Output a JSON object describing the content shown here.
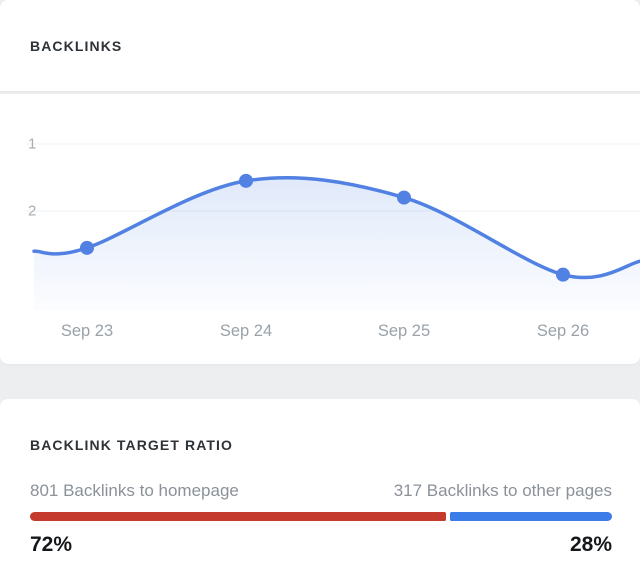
{
  "backlinks": {
    "title": "BACKLINKS"
  },
  "ratio": {
    "title": "BACKLINK TARGET RATIO",
    "left_label": "801 Backlinks to homepage",
    "right_label": "317 Backlinks to other pages",
    "left_percent": "72%",
    "right_percent": "28%",
    "left_value": 72,
    "right_value": 28,
    "left_color": "#c43b2e",
    "right_color": "#3c7ce9"
  },
  "chart_data": [
    {
      "type": "line",
      "title": "Backlinks",
      "categories": [
        "Sep 23",
        "Sep 24",
        "Sep 25",
        "Sep 26"
      ],
      "values": [
        2.55,
        1.55,
        1.8,
        2.95
      ],
      "edge_start": 2.6,
      "edge_end": 2.75,
      "y_ticks": [
        "1",
        "2"
      ],
      "y_axis_inverted": true,
      "line_color": "#5181e2",
      "area_fill": true,
      "grid": "faint-horizontal",
      "legend": "none"
    },
    {
      "type": "bar",
      "title": "Backlink target ratio",
      "categories": [
        "Backlinks to homepage",
        "Backlinks to other pages"
      ],
      "values": [
        801,
        317
      ],
      "percents": [
        72,
        28
      ],
      "colors": [
        "#c43b2e",
        "#3c7ce9"
      ]
    }
  ]
}
